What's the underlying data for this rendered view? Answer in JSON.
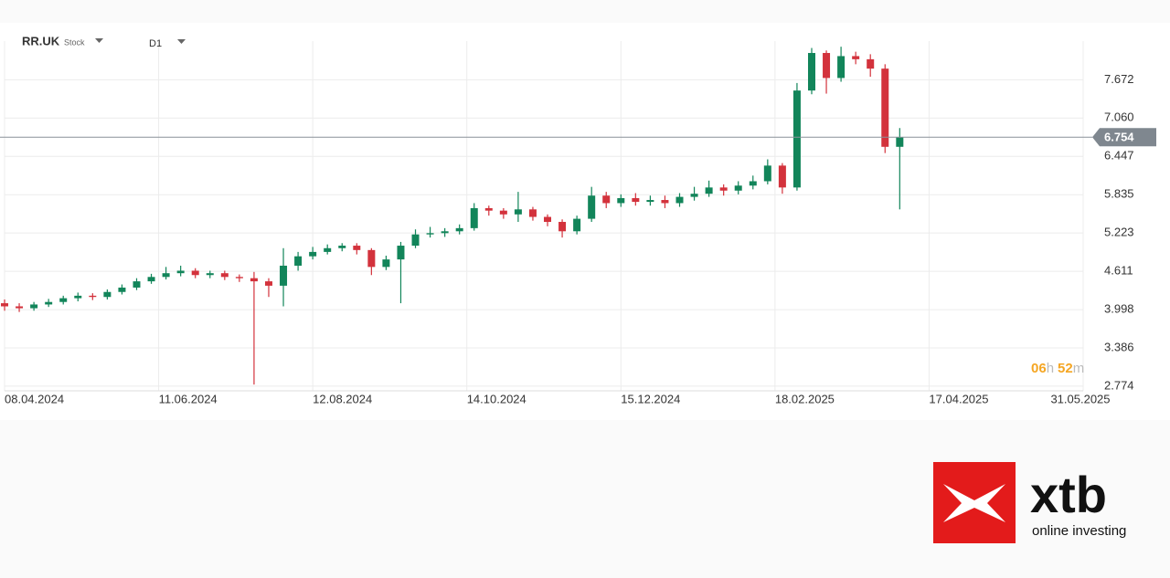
{
  "chart_data": {
    "type": "candlestick",
    "symbol": "RR.UK",
    "instrument_type": "Stock",
    "timeframe": "D1",
    "x": [
      0,
      4,
      8,
      12,
      16,
      20,
      24,
      28,
      32,
      36,
      40,
      44,
      48,
      52,
      56,
      60,
      64,
      68,
      72,
      76,
      80,
      84,
      88,
      92,
      96,
      100,
      104,
      108,
      112,
      116,
      120,
      124,
      128,
      132,
      136,
      140,
      144,
      148,
      152,
      156,
      160,
      164,
      168,
      172,
      176,
      180,
      184,
      188,
      192,
      196,
      200,
      204,
      208,
      212,
      216,
      220,
      224,
      228,
      232,
      236,
      240,
      244
    ],
    "open": [
      4.1,
      4.05,
      4.02,
      4.08,
      4.12,
      4.18,
      4.22,
      4.2,
      4.28,
      4.35,
      4.45,
      4.52,
      4.58,
      4.62,
      4.55,
      4.58,
      4.52,
      4.5,
      4.45,
      4.38,
      4.7,
      4.85,
      4.92,
      4.98,
      5.02,
      4.95,
      4.68,
      4.8,
      5.02,
      5.2,
      5.22,
      5.25,
      5.3,
      5.62,
      5.58,
      5.52,
      5.6,
      5.48,
      5.4,
      5.25,
      5.45,
      5.82,
      5.7,
      5.78,
      5.72,
      5.75,
      5.7,
      5.8,
      5.85,
      5.95,
      5.9,
      5.98,
      6.05,
      6.3,
      5.95,
      7.5,
      8.1,
      7.7,
      8.05,
      8.0,
      7.85,
      6.6
    ],
    "high": [
      4.16,
      4.1,
      4.12,
      4.17,
      4.22,
      4.27,
      4.26,
      4.32,
      4.4,
      4.5,
      4.57,
      4.68,
      4.7,
      4.66,
      4.62,
      4.62,
      4.56,
      4.6,
      4.5,
      4.98,
      4.92,
      5.0,
      5.04,
      5.06,
      5.06,
      4.98,
      4.86,
      5.08,
      5.28,
      5.32,
      5.3,
      5.36,
      5.7,
      5.66,
      5.62,
      5.88,
      5.64,
      5.52,
      5.44,
      5.5,
      5.96,
      5.88,
      5.84,
      5.86,
      5.82,
      5.82,
      5.86,
      5.96,
      6.06,
      6.0,
      6.05,
      6.14,
      6.4,
      6.34,
      7.62,
      8.18,
      8.14,
      8.2,
      8.12,
      8.08,
      7.92,
      6.9
    ],
    "low": [
      3.98,
      3.96,
      3.98,
      4.04,
      4.08,
      4.13,
      4.15,
      4.16,
      4.24,
      4.31,
      4.41,
      4.48,
      4.53,
      4.5,
      4.5,
      4.47,
      4.44,
      2.8,
      4.2,
      4.05,
      4.62,
      4.8,
      4.88,
      4.93,
      4.88,
      4.55,
      4.63,
      4.1,
      4.98,
      5.15,
      5.16,
      5.2,
      5.26,
      5.5,
      5.45,
      5.4,
      5.42,
      5.33,
      5.15,
      5.2,
      5.4,
      5.62,
      5.64,
      5.66,
      5.66,
      5.62,
      5.64,
      5.74,
      5.8,
      5.82,
      5.84,
      5.92,
      6.0,
      5.85,
      5.9,
      7.44,
      7.45,
      7.64,
      7.92,
      7.72,
      6.5,
      5.6
    ],
    "close": [
      4.05,
      4.02,
      4.08,
      4.12,
      4.18,
      4.22,
      4.2,
      4.28,
      4.35,
      4.45,
      4.52,
      4.58,
      4.62,
      4.55,
      4.58,
      4.52,
      4.5,
      4.45,
      4.38,
      4.7,
      4.85,
      4.92,
      4.98,
      5.02,
      4.95,
      4.68,
      4.8,
      5.02,
      5.2,
      5.22,
      5.25,
      5.3,
      5.62,
      5.58,
      5.52,
      5.6,
      5.48,
      5.4,
      5.25,
      5.45,
      5.82,
      5.7,
      5.78,
      5.72,
      5.75,
      5.7,
      5.8,
      5.85,
      5.95,
      5.9,
      5.98,
      6.05,
      6.3,
      5.95,
      7.5,
      8.1,
      7.7,
      8.05,
      8.0,
      7.85,
      6.6,
      6.754
    ],
    "up_color": "#12855a",
    "down_color": "#d3323c",
    "xlim": [
      0,
      294
    ],
    "xticks": [
      {
        "value": 0,
        "label": "08.04.2024"
      },
      {
        "value": 42,
        "label": "11.06.2024"
      },
      {
        "value": 84,
        "label": "12.08.2024"
      },
      {
        "value": 126,
        "label": "14.10.2024"
      },
      {
        "value": 168,
        "label": "15.12.2024"
      },
      {
        "value": 210,
        "label": "18.02.2025"
      },
      {
        "value": 252,
        "label": "17.04.2025"
      },
      {
        "value": 294,
        "label": "31.05.2025"
      }
    ],
    "ylim": [
      2.7,
      8.29
    ],
    "yticks": [
      2.774,
      3.386,
      3.998,
      4.611,
      5.223,
      5.835,
      6.447,
      {
        "value": 7.06,
        "label": "7.060"
      },
      7.672
    ],
    "current_price": 6.754,
    "countdown": [
      "06",
      "h",
      "52",
      "m"
    ],
    "grid": true
  },
  "branding": {
    "logo": "xtb",
    "tagline": "online investing"
  }
}
